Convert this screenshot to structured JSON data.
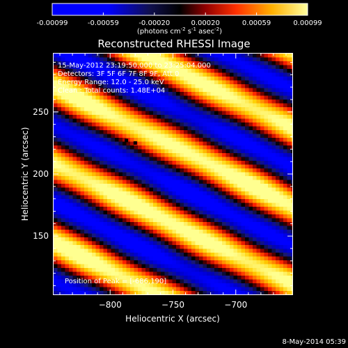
{
  "colorbar": {
    "ticks": [
      "-0.00099",
      "-0.00059",
      "-0.00020",
      "0.00020",
      "0.00059",
      "0.00099"
    ],
    "unit_label": "(photons cm",
    "unit_sup1": "-2",
    "unit_s": " s",
    "unit_sup2": "-1",
    "unit_asec": " asec",
    "unit_sup3": "-2",
    "unit_end": ")"
  },
  "chart_data": {
    "type": "heatmap",
    "title": "Reconstructed RHESSI Image",
    "xlabel": "Heliocentric X (arcsec)",
    "ylabel": "Heliocentric Y (arcsec)",
    "xlim": [
      -845,
      -655
    ],
    "ylim": [
      103,
      297
    ],
    "x_ticks": [
      -800,
      -750,
      -700
    ],
    "x_tick_labels": [
      "−800",
      "−750",
      "−700"
    ],
    "y_ticks": [
      150,
      200,
      250
    ],
    "y_tick_labels": [
      "150",
      "200",
      "250"
    ],
    "value_range": [
      -0.00099,
      0.00099
    ],
    "colormap": [
      "#0000ff",
      "#0000c0",
      "#1a1a70",
      "#000000",
      "#800000",
      "#ff2000",
      "#ff8000",
      "#ffd000",
      "#ffff90"
    ],
    "pattern": {
      "description_values": "diagonal fringe pattern",
      "fringe_spacing_arcsec": 56,
      "orientation_deg": 27,
      "peak_offset_x": -686,
      "peak_offset_y": 190
    },
    "markers": [
      {
        "x": -787,
        "y": 227
      },
      {
        "x": -780,
        "y": 225
      }
    ],
    "annotations": [
      "15-May-2012 23:19:50.000 to 23:25:04.000",
      "Detectors: 3F 5F 6F 7F 8F 9F, Att 0",
      "Energy Range: 12.0 - 25.0 keV",
      "Clean : Total counts: 1.48E+04"
    ],
    "peak_label": "Position of Peak = [-686,190]"
  },
  "footer": {
    "timestamp": "8-May-2014 05:39"
  }
}
